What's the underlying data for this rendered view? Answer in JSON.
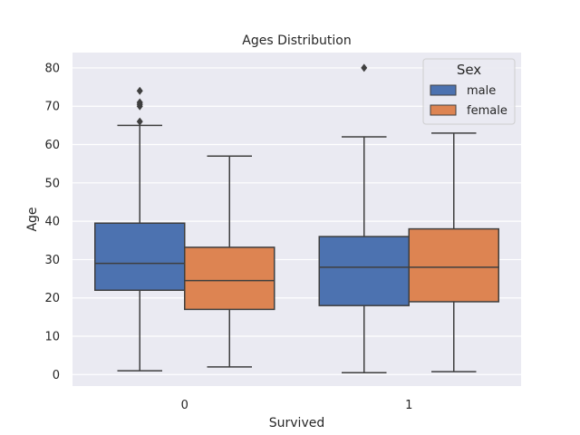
{
  "chart_data": {
    "type": "boxplot",
    "title": "Ages Distribution",
    "xlabel": "Survived",
    "ylabel": "Age",
    "categories": [
      "0",
      "1"
    ],
    "ylim": [
      -3,
      84
    ],
    "yticks": [
      0,
      10,
      20,
      30,
      40,
      50,
      60,
      70,
      80
    ],
    "grid": true,
    "legend": {
      "title": "Sex",
      "placement": "top-right"
    },
    "series": [
      {
        "name": "male",
        "color": "#4c72b0",
        "boxes": [
          {
            "whisker_low": 1,
            "q1": 22,
            "median": 29,
            "q3": 39.5,
            "whisker_high": 65,
            "outliers": [
              66,
              70,
              70.5,
              71,
              74
            ]
          },
          {
            "whisker_low": 0.5,
            "q1": 18,
            "median": 28,
            "q3": 36,
            "whisker_high": 62,
            "outliers": [
              80
            ]
          }
        ]
      },
      {
        "name": "female",
        "color": "#dd8452",
        "boxes": [
          {
            "whisker_low": 2,
            "q1": 17,
            "median": 24.5,
            "q3": 33.2,
            "whisker_high": 57,
            "outliers": []
          },
          {
            "whisker_low": 0.75,
            "q1": 19,
            "median": 28,
            "q3": 38,
            "whisker_high": 63,
            "outliers": []
          }
        ]
      }
    ]
  }
}
